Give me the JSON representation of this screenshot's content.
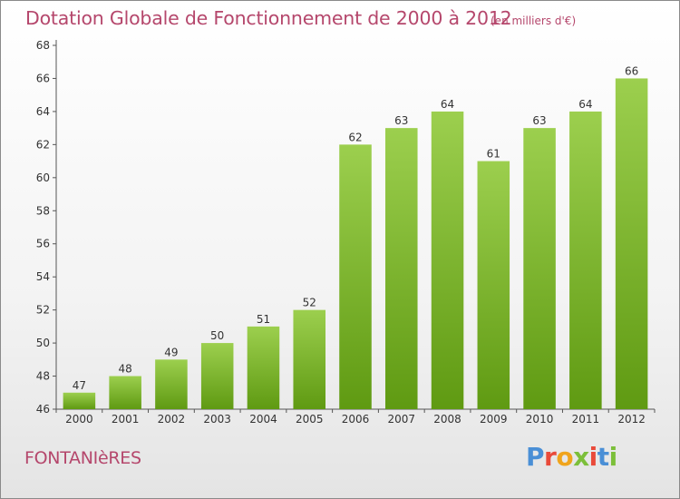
{
  "chart_data": {
    "type": "bar",
    "title": "Dotation Globale de Fonctionnement de 2000 à 2012",
    "unit_note": "(en milliers d'€)",
    "xlabel": "",
    "ylabel": "",
    "categories": [
      "2000",
      "2001",
      "2002",
      "2003",
      "2004",
      "2005",
      "2006",
      "2007",
      "2008",
      "2009",
      "2010",
      "2011",
      "2012"
    ],
    "values": [
      47,
      48,
      49,
      50,
      51,
      52,
      62,
      63,
      64,
      61,
      63,
      64,
      66
    ],
    "ylim": [
      46,
      68
    ],
    "yticks": [
      46,
      48,
      50,
      52,
      54,
      56,
      58,
      60,
      62,
      64,
      66,
      68
    ],
    "grid": false,
    "legend": "none",
    "bar_colors": {
      "top": "#9ccf4e",
      "bottom": "#5f9a12"
    }
  },
  "footer": {
    "place_name": "FONTANIèRES",
    "logo": {
      "letters": [
        "P",
        "r",
        "o",
        "x",
        "i",
        "t",
        "i"
      ],
      "text": "Proxiti"
    }
  },
  "colors": {
    "title": "#b5476c",
    "axis": "#555555"
  }
}
